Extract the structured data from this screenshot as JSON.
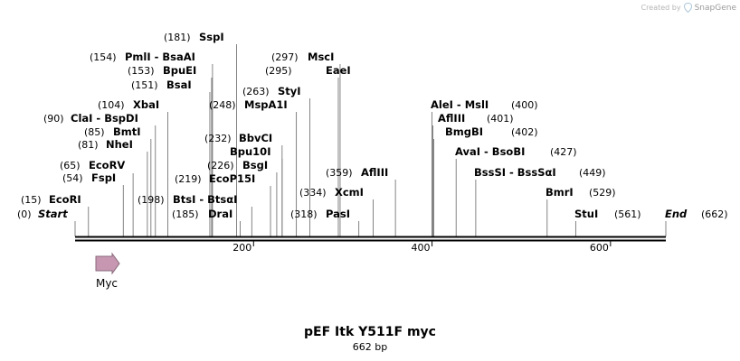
{
  "credit": {
    "prefix": "Created by",
    "brand": "SnapGene",
    "icon": "snapgene-logo-icon"
  },
  "sequence": {
    "name": "pEF Itk Y511F myc",
    "length_label": "662 bp",
    "length": 662
  },
  "colors": {
    "backbone": "#000000",
    "feature_fill": "#c797b1",
    "feature_stroke": "#8a6a7c",
    "leader": "#555555"
  },
  "ticks": [
    200,
    400,
    600
  ],
  "features": [
    {
      "name": "Myc",
      "start": 23,
      "end": 50,
      "direction": "forward",
      "color": "#c797b1"
    }
  ],
  "sites": [
    {
      "pos_label": "(0)",
      "name": "Start",
      "position": 0,
      "italic": true
    },
    {
      "pos_label": "(15)",
      "name": "EcoRI",
      "position": 15
    },
    {
      "pos_label": "(54)",
      "name": "FspI",
      "position": 54
    },
    {
      "pos_label": "(65)",
      "name": "EcoRV",
      "position": 65
    },
    {
      "pos_label": "(81)",
      "name": "NheI",
      "position": 81
    },
    {
      "pos_label": "(85)",
      "name": "BmtI",
      "position": 85
    },
    {
      "pos_label": "(90)",
      "name": "ClaI  - BspDI",
      "position": 90
    },
    {
      "pos_label": "(104)",
      "name": "XbaI",
      "position": 104
    },
    {
      "pos_label": "(151)",
      "name": "BsaI",
      "position": 151
    },
    {
      "pos_label": "(153)",
      "name": "BpuEI",
      "position": 153
    },
    {
      "pos_label": "(154)",
      "name": "PmlI  - BsaAI",
      "position": 154
    },
    {
      "pos_label": "(181)",
      "name": "SspI",
      "position": 181
    },
    {
      "pos_label": "(185)",
      "name": "DraI",
      "position": 185
    },
    {
      "pos_label": "(198)",
      "name": "BtsI  - BtsαI",
      "position": 198
    },
    {
      "pos_label": "(219)",
      "name": "EcoP15I",
      "position": 219
    },
    {
      "pos_label": "(226)",
      "name": "BsgI",
      "position": 226
    },
    {
      "pos_label": "(232)",
      "name": "BbvCI",
      "position": 232
    },
    {
      "pos_label": "(248)",
      "name": "MspA1I",
      "position": 248
    },
    {
      "pos_label": "(263)",
      "name": "StyI",
      "position": 263
    },
    {
      "pos_label": "(295)",
      "name": "EaeI",
      "position": 295
    },
    {
      "pos_label": "(297)",
      "name": "MscI",
      "position": 297
    },
    {
      "pos_label": "(318)",
      "name": "PasI",
      "position": 318
    },
    {
      "pos_label": "(334)",
      "name": "XcmI",
      "position": 334
    },
    {
      "pos_label": "(359)",
      "name": "AflIII",
      "position": 359
    },
    {
      "pos_label": "(400)",
      "name": "AleI  - MslI",
      "position": 400
    },
    {
      "pos_label": "(401)",
      "name": "AflIII",
      "position": 401
    },
    {
      "pos_label": "(402)",
      "name": "BmgBI",
      "position": 402
    },
    {
      "pos_label": "(427)",
      "name": "AvaI  - BsoBI",
      "position": 427
    },
    {
      "pos_label": "(449)",
      "name": "BssSI  - BssSαI",
      "position": 449
    },
    {
      "pos_label": "(529)",
      "name": "BmrI",
      "position": 529
    },
    {
      "pos_label": "(561)",
      "name": "StuI",
      "position": 561
    },
    {
      "pos_label": "(662)",
      "name": "End",
      "position": 662,
      "italic": true
    },
    {
      "pos_label": "",
      "name": "Bpu10I",
      "position": 232
    },
    {
      "pos_label": "",
      "name": "",
      "position": 185
    }
  ]
}
